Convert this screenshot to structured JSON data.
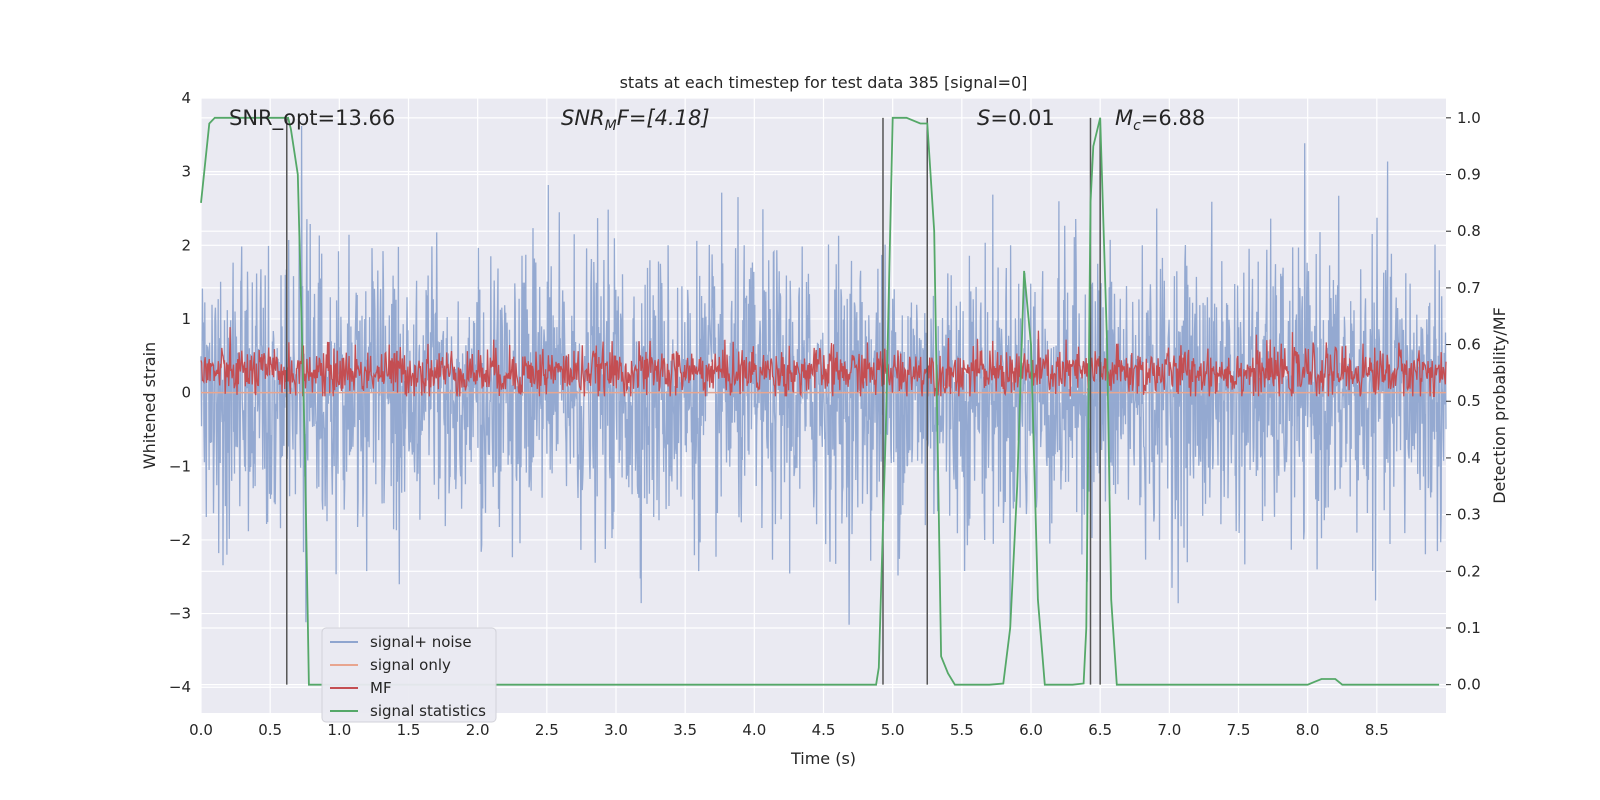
{
  "chart_data": {
    "type": "line",
    "title": "stats at each timestep for test data 385 [signal=0]",
    "xlabel": "Time (s)",
    "ylabel_left": "Whitened strain",
    "ylabel_right": "Detection probability/MF",
    "xlim": [
      0,
      9.0
    ],
    "ylim_left": [
      -4.35,
      4.0
    ],
    "ylim_right": [
      -0.05,
      1.035
    ],
    "x_ticks": [
      "0.0",
      "0.5",
      "1.0",
      "1.5",
      "2.0",
      "2.5",
      "3.0",
      "3.5",
      "4.0",
      "4.5",
      "5.0",
      "5.5",
      "6.0",
      "6.5",
      "7.0",
      "7.5",
      "8.0",
      "8.5"
    ],
    "y_ticks_left": [
      "−4",
      "−3",
      "−2",
      "−1",
      "0",
      "1",
      "2",
      "3",
      "4"
    ],
    "y_ticks_right": [
      "0.0",
      "0.1",
      "0.2",
      "0.3",
      "0.4",
      "0.5",
      "0.6",
      "0.7",
      "0.8",
      "0.9",
      "1.0"
    ],
    "grid": true,
    "legend_position": "lower-left",
    "annotations": {
      "snr_opt": "SNR_opt=13.66",
      "snr_mf_main": "SNR",
      "snr_mf_sub": "M",
      "snr_mf_rest": "F=[4.18]",
      "s_main": "S",
      "s_rest": "=0.01",
      "mc_main": "M",
      "mc_sub": "c",
      "mc_rest": "=6.88"
    },
    "series": [
      {
        "name": "signal+ noise",
        "color": "#8fa5cf",
        "axis": "left",
        "envelope": {
          "typical_range": [
            -1.9,
            1.9
          ],
          "extremes_range": [
            -4.0,
            3.62
          ]
        }
      },
      {
        "name": "signal only",
        "color": "#e8a58f",
        "axis": "left",
        "constant": 0.0
      },
      {
        "name": "MF",
        "color": "#c44e52",
        "axis": "left",
        "envelope": {
          "center": 0.28,
          "range": [
            -0.05,
            1.0
          ]
        }
      },
      {
        "name": "signal statistics",
        "color": "#55a868",
        "axis": "right",
        "x": [
          0.0,
          0.06,
          0.1,
          0.15,
          0.2,
          0.3,
          0.4,
          0.5,
          0.6,
          0.63,
          0.65,
          0.7,
          0.75,
          0.78,
          0.8,
          0.85,
          0.9,
          1.0,
          2.0,
          3.0,
          4.0,
          4.5,
          4.88,
          4.9,
          4.95,
          5.0,
          5.05,
          5.1,
          5.2,
          5.25,
          5.3,
          5.35,
          5.4,
          5.45,
          5.5,
          5.55,
          5.7,
          5.8,
          5.85,
          5.9,
          5.95,
          6.0,
          6.05,
          6.1,
          6.15,
          6.2,
          6.3,
          6.38,
          6.4,
          6.43,
          6.45,
          6.5,
          6.55,
          6.58,
          6.62,
          6.7,
          7.0,
          8.0,
          8.05,
          8.1,
          8.15,
          8.2,
          8.25,
          8.3,
          8.5,
          8.95
        ],
        "y": [
          0.85,
          0.99,
          1.0,
          1.0,
          1.0,
          1.0,
          1.0,
          1.0,
          1.0,
          1.0,
          0.98,
          0.9,
          0.42,
          0.0,
          0.0,
          0.0,
          0.0,
          0.0,
          0.0,
          0.0,
          0.0,
          0.0,
          0.0,
          0.03,
          0.45,
          1.0,
          1.0,
          1.0,
          0.99,
          0.99,
          0.8,
          0.05,
          0.02,
          0.0,
          0.0,
          0.0,
          0.0,
          0.002,
          0.1,
          0.35,
          0.73,
          0.6,
          0.15,
          0.0,
          0.0,
          0.0,
          0.0,
          0.002,
          0.1,
          0.85,
          0.95,
          1.0,
          0.6,
          0.15,
          0.0,
          0.0,
          0.0,
          0.0,
          0.005,
          0.01,
          0.01,
          0.01,
          0.0,
          0.0,
          0.0,
          0.0
        ]
      }
    ],
    "vertical_markers": [
      0.62,
      4.93,
      5.25,
      6.43,
      6.5
    ]
  }
}
